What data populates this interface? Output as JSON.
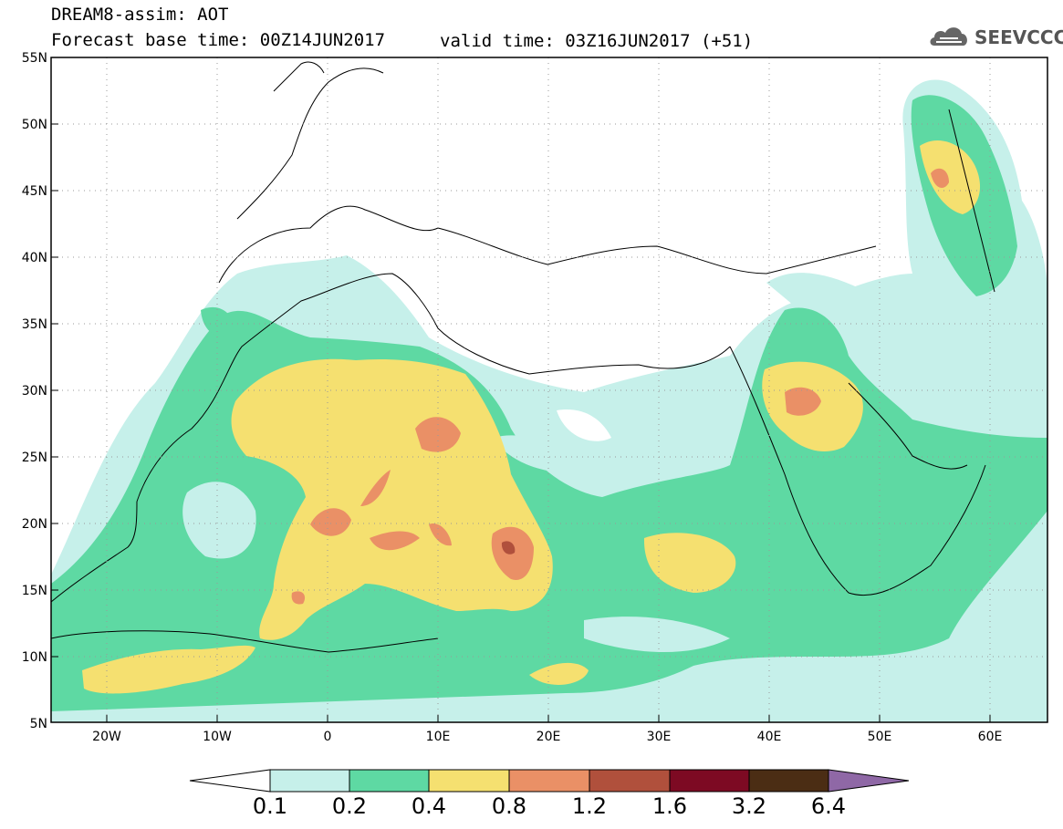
{
  "header": {
    "title_line1": "DREAM8-assim: AOT",
    "title_line2": "Forecast base time: 00Z14JUN2017",
    "valid_time": "valid time: 03Z16JUN2017 (+51)",
    "logo_text": "SEEVCCC"
  },
  "map": {
    "lat_labels": [
      "55N",
      "50N",
      "45N",
      "40N",
      "35N",
      "30N",
      "25N",
      "20N",
      "15N",
      "10N",
      "5N"
    ],
    "lon_labels": [
      "20W",
      "10W",
      "0",
      "10E",
      "20E",
      "30E",
      "40E",
      "50E",
      "60E"
    ],
    "lat_range": [
      5,
      55
    ],
    "lon_range": [
      -25,
      65
    ],
    "grid": "dotted"
  },
  "colorbar": {
    "labels": [
      "0.1",
      "0.2",
      "0.4",
      "0.8",
      "1.2",
      "1.6",
      "3.2",
      "6.4"
    ],
    "colors": [
      "#ffffff",
      "#c6f0ea",
      "#5ed9a3",
      "#f5e070",
      "#ea9066",
      "#b0503c",
      "#7d0a23",
      "#4b2d14",
      "#8f68a6"
    ]
  }
}
